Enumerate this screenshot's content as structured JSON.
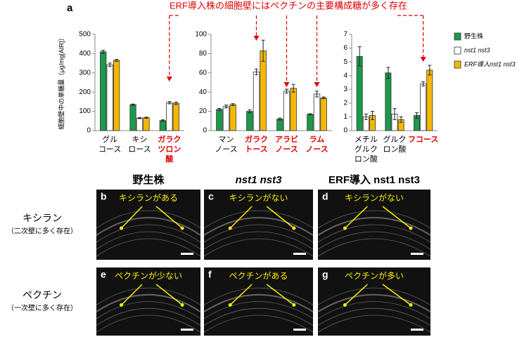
{
  "chart_data": [
    {
      "type": "bar",
      "panel": "a",
      "ylabel": "細胞壁中の単糖量（μg/mg[AIR]）",
      "categories": [
        [
          "グル",
          "コース"
        ],
        [
          "キシ",
          "ロース"
        ],
        [
          "ガラク",
          "ツロン",
          "酸"
        ]
      ],
      "category_colors": [
        "#000000",
        "#000000",
        "#e00000"
      ],
      "series": [
        {
          "name": "野生株",
          "color": "#1a9a4a",
          "values": [
            410,
            135,
            52
          ],
          "errors": [
            8,
            3,
            4
          ]
        },
        {
          "name": "nst1 nst3",
          "color": "#ffffff",
          "values": [
            342,
            65,
            145
          ],
          "errors": [
            9,
            3,
            6
          ]
        },
        {
          "name": "ERF導入nst1 nst3",
          "color": "#f5b800",
          "values": [
            365,
            67,
            142
          ],
          "errors": [
            5,
            3,
            6
          ]
        }
      ],
      "ylim": [
        0,
        500
      ],
      "yticks": [
        0,
        100,
        200,
        300,
        400,
        500
      ]
    },
    {
      "type": "bar",
      "categories": [
        [
          "マン",
          "ノース"
        ],
        [
          "ガラク",
          "トース"
        ],
        [
          "アラビ",
          "ノース"
        ],
        [
          "ラム",
          "ノース"
        ]
      ],
      "category_colors": [
        "#000000",
        "#e00000",
        "#e00000",
        "#e00000"
      ],
      "series": [
        {
          "name": "野生株",
          "color": "#1a9a4a",
          "values": [
            22,
            20,
            12,
            17
          ],
          "errors": [
            1,
            1.5,
            1,
            0.5
          ]
        },
        {
          "name": "nst1 nst3",
          "color": "#ffffff",
          "values": [
            25,
            61,
            41,
            38
          ],
          "errors": [
            1.5,
            3,
            2,
            3
          ]
        },
        {
          "name": "ERF導入nst1 nst3",
          "color": "#f5b800",
          "values": [
            27,
            83,
            44,
            34
          ],
          "errors": [
            1,
            11,
            4,
            1
          ]
        }
      ],
      "ylim": [
        0,
        100
      ],
      "yticks": [
        0,
        20,
        40,
        60,
        80,
        100
      ]
    },
    {
      "type": "bar",
      "categories": [
        [
          "メチル",
          "グルク",
          "ロン酸"
        ],
        [
          "グルク",
          "ロン酸"
        ],
        [
          "フコース"
        ]
      ],
      "category_colors": [
        "#000000",
        "#000000",
        "#e00000"
      ],
      "series": [
        {
          "name": "野生株",
          "color": "#1a9a4a",
          "values": [
            5.4,
            4.2,
            1.1
          ],
          "errors": [
            0.7,
            0.4,
            0.2
          ]
        },
        {
          "name": "nst1 nst3",
          "color": "#ffffff",
          "values": [
            1.0,
            1.2,
            3.4
          ],
          "errors": [
            0.2,
            0.4,
            0.15
          ]
        },
        {
          "name": "ERF導入nst1 nst3",
          "color": "#f5b800",
          "values": [
            1.1,
            0.8,
            4.4
          ],
          "errors": [
            0.3,
            0.2,
            0.35
          ]
        }
      ],
      "ylim": [
        0,
        7
      ],
      "yticks": [
        0,
        1,
        2,
        3,
        4,
        5,
        6,
        7
      ]
    }
  ],
  "banner": "ERF導入株の細胞壁にはペクチンの主要構成糖が多く存在",
  "images": {
    "columns": [
      "野生株",
      "nst1 nst3",
      "ERF導入 nst1 nst3"
    ],
    "rows": [
      {
        "label": "キシラン",
        "note": "（二次壁に多く存在）"
      },
      {
        "label": "ペクチン",
        "note": "（一次壁に多く存在）"
      }
    ],
    "panels": [
      {
        "letter": "b",
        "annotation": "キシランがある"
      },
      {
        "letter": "c",
        "annotation": "キシランがない"
      },
      {
        "letter": "d",
        "annotation": "キシランがない"
      },
      {
        "letter": "e",
        "annotation": "ペクチンが少ない"
      },
      {
        "letter": "f",
        "annotation": "ペクチンがある"
      },
      {
        "letter": "g",
        "annotation": "ペクチンが多い"
      }
    ]
  }
}
